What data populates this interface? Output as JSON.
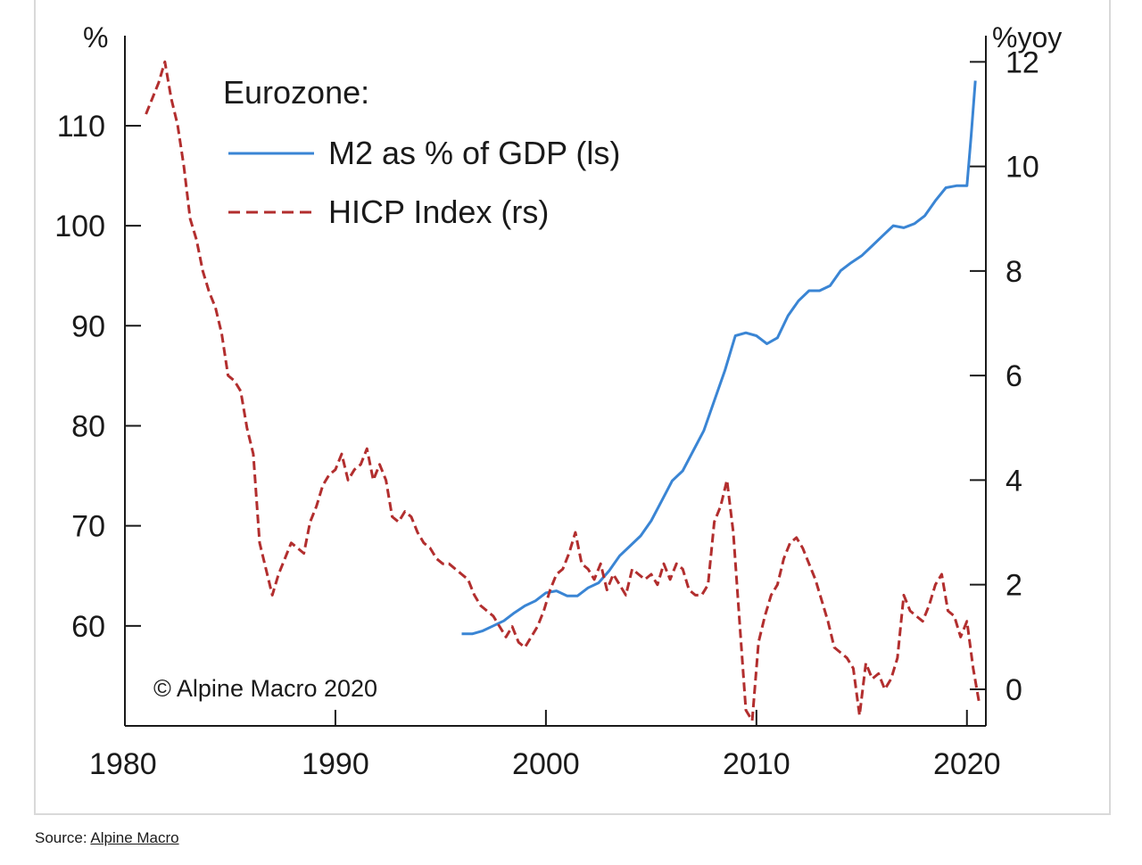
{
  "source": {
    "label": "Source:",
    "link_text": "Alpine Macro"
  },
  "chart_data": {
    "type": "line",
    "title": "Eurozone:",
    "copyright": "© Alpine Macro 2020",
    "left_axis": {
      "unit_label": "%",
      "ticks": [
        60,
        70,
        80,
        90,
        100,
        110
      ],
      "range": [
        50,
        119
      ]
    },
    "right_axis": {
      "unit_label": "%yoy",
      "ticks": [
        0,
        2,
        4,
        6,
        8,
        10,
        12
      ],
      "range": [
        -0.7,
        12.5
      ]
    },
    "x_axis": {
      "ticks": [
        1980,
        1990,
        2000,
        2010,
        2020
      ],
      "range": [
        1980,
        2020.9
      ]
    },
    "grid": false,
    "legend_position": "top-left",
    "colors": {
      "m2": "#3a85d4",
      "hicp": "#b22e2e",
      "axis": "#1a1a1a"
    },
    "series": [
      {
        "name": "M2 as % of GDP (ls)",
        "axis": "left",
        "style": "solid",
        "x": [
          1996.0,
          1996.5,
          1997.0,
          1997.5,
          1998.0,
          1998.5,
          1999.0,
          1999.5,
          2000.0,
          2000.5,
          2001.0,
          2001.5,
          2002.0,
          2002.5,
          2003.0,
          2003.5,
          2004.0,
          2004.5,
          2005.0,
          2005.5,
          2006.0,
          2006.5,
          2007.0,
          2007.5,
          2008.0,
          2008.5,
          2009.0,
          2009.5,
          2010.0,
          2010.5,
          2011.0,
          2011.5,
          2012.0,
          2012.5,
          2013.0,
          2013.5,
          2014.0,
          2014.5,
          2015.0,
          2015.5,
          2016.0,
          2016.5,
          2017.0,
          2017.5,
          2018.0,
          2018.5,
          2019.0,
          2019.5,
          2020.0,
          2020.2,
          2020.4
        ],
        "values": [
          59.2,
          59.2,
          59.5,
          60.0,
          60.5,
          61.3,
          62.0,
          62.5,
          63.3,
          63.5,
          63.0,
          63.0,
          63.8,
          64.3,
          65.5,
          67.0,
          68.0,
          69.0,
          70.5,
          72.5,
          74.5,
          75.5,
          77.5,
          79.5,
          82.5,
          85.5,
          89.0,
          89.3,
          89.0,
          88.2,
          88.8,
          91.0,
          92.5,
          93.5,
          93.5,
          94.0,
          95.5,
          96.3,
          97.0,
          98.0,
          99.0,
          100.0,
          99.8,
          100.2,
          101.0,
          102.5,
          103.8,
          104.0,
          104.0,
          109.0,
          114.5
        ]
      },
      {
        "name": "HICP Index (rs)",
        "axis": "right",
        "style": "dashed",
        "x": [
          1981.0,
          1981.3,
          1981.6,
          1981.9,
          1982.2,
          1982.5,
          1982.8,
          1983.1,
          1983.4,
          1983.7,
          1984.0,
          1984.3,
          1984.6,
          1984.9,
          1985.2,
          1985.5,
          1985.8,
          1986.1,
          1986.4,
          1986.7,
          1987.0,
          1987.3,
          1987.6,
          1987.9,
          1988.2,
          1988.5,
          1988.8,
          1989.1,
          1989.4,
          1989.7,
          1990.0,
          1990.3,
          1990.6,
          1990.9,
          1991.2,
          1991.5,
          1991.8,
          1992.1,
          1992.4,
          1992.7,
          1993.0,
          1993.3,
          1993.6,
          1993.9,
          1994.2,
          1994.5,
          1994.8,
          1995.1,
          1995.4,
          1995.7,
          1996.0,
          1996.3,
          1996.6,
          1996.9,
          1997.2,
          1997.5,
          1997.8,
          1998.1,
          1998.4,
          1998.7,
          1999.0,
          1999.3,
          1999.6,
          1999.9,
          2000.2,
          2000.5,
          2000.8,
          2001.1,
          2001.4,
          2001.7,
          2002.0,
          2002.3,
          2002.6,
          2002.9,
          2003.2,
          2003.5,
          2003.8,
          2004.1,
          2004.4,
          2004.7,
          2005.0,
          2005.3,
          2005.6,
          2005.9,
          2006.2,
          2006.5,
          2006.8,
          2007.1,
          2007.4,
          2007.7,
          2008.0,
          2008.3,
          2008.6,
          2008.9,
          2009.2,
          2009.5,
          2009.8,
          2010.1,
          2010.4,
          2010.7,
          2011.0,
          2011.3,
          2011.6,
          2011.9,
          2012.2,
          2012.5,
          2012.8,
          2013.1,
          2013.4,
          2013.7,
          2014.0,
          2014.3,
          2014.6,
          2014.9,
          2015.2,
          2015.5,
          2015.8,
          2016.1,
          2016.4,
          2016.7,
          2017.0,
          2017.3,
          2017.6,
          2017.9,
          2018.2,
          2018.5,
          2018.8,
          2019.1,
          2019.4,
          2019.7,
          2020.0,
          2020.3,
          2020.6
        ],
        "values": [
          11.0,
          11.3,
          11.6,
          12.0,
          11.3,
          10.8,
          10.0,
          9.0,
          8.6,
          8.0,
          7.6,
          7.3,
          6.8,
          6.0,
          5.9,
          5.7,
          5.0,
          4.5,
          2.8,
          2.3,
          1.8,
          2.2,
          2.5,
          2.8,
          2.7,
          2.6,
          3.2,
          3.5,
          3.9,
          4.1,
          4.2,
          4.5,
          4.0,
          4.2,
          4.3,
          4.6,
          4.0,
          4.3,
          4.0,
          3.3,
          3.2,
          3.4,
          3.3,
          3.0,
          2.8,
          2.7,
          2.5,
          2.4,
          2.4,
          2.3,
          2.2,
          2.1,
          1.8,
          1.6,
          1.5,
          1.4,
          1.2,
          1.0,
          1.2,
          0.9,
          0.8,
          1.0,
          1.2,
          1.5,
          1.9,
          2.2,
          2.3,
          2.6,
          3.0,
          2.4,
          2.3,
          2.1,
          2.4,
          1.9,
          2.2,
          2.0,
          1.8,
          2.3,
          2.2,
          2.1,
          2.2,
          2.0,
          2.4,
          2.1,
          2.4,
          2.3,
          1.9,
          1.8,
          1.8,
          2.0,
          3.2,
          3.5,
          4.0,
          3.0,
          1.3,
          -0.4,
          -0.6,
          0.9,
          1.4,
          1.8,
          2.0,
          2.5,
          2.8,
          2.9,
          2.7,
          2.4,
          2.1,
          1.7,
          1.3,
          0.8,
          0.7,
          0.6,
          0.4,
          -0.5,
          0.5,
          0.2,
          0.3,
          0.0,
          0.2,
          0.6,
          1.8,
          1.5,
          1.4,
          1.3,
          1.6,
          2.0,
          2.2,
          1.5,
          1.4,
          1.0,
          1.3,
          0.4,
          -0.3
        ]
      }
    ]
  }
}
